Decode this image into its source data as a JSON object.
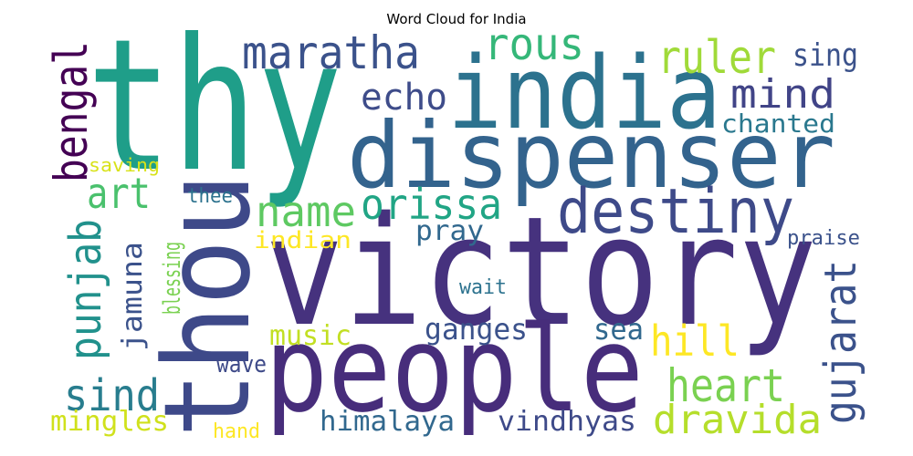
{
  "chart_data": {
    "type": "wordcloud",
    "title": "Word Cloud for India",
    "words": [
      {
        "text": "victory",
        "color": "#46327e"
      },
      {
        "text": "thy",
        "color": "#1f9e89"
      },
      {
        "text": "india",
        "color": "#2c728e"
      },
      {
        "text": "dispenser",
        "color": "#33638d"
      },
      {
        "text": "people",
        "color": "#472d7b"
      },
      {
        "text": "thou",
        "color": "#3e4989"
      },
      {
        "text": "maratha",
        "color": "#3b528b"
      },
      {
        "text": "rous",
        "color": "#35b779"
      },
      {
        "text": "ruler",
        "color": "#a0da39"
      },
      {
        "text": "sing",
        "color": "#3b528b"
      },
      {
        "text": "echo",
        "color": "#3e4c8a"
      },
      {
        "text": "mind",
        "color": "#414487"
      },
      {
        "text": "chanted",
        "color": "#2a788e"
      },
      {
        "text": "bengal",
        "color": "#440154"
      },
      {
        "text": "art",
        "color": "#4ac16d"
      },
      {
        "text": "saving",
        "color": "#d8e219"
      },
      {
        "text": "punjab",
        "color": "#21918c"
      },
      {
        "text": "jamuna",
        "color": "#3b528b"
      },
      {
        "text": "blessing",
        "color": "#7ad151"
      },
      {
        "text": "thee",
        "color": "#2c728e"
      },
      {
        "text": "name",
        "color": "#5ec962"
      },
      {
        "text": "orissa",
        "color": "#21a585"
      },
      {
        "text": "destiny",
        "color": "#3e4a89"
      },
      {
        "text": "indian",
        "color": "#fde725"
      },
      {
        "text": "pray",
        "color": "#31688e"
      },
      {
        "text": "praise",
        "color": "#3b528b"
      },
      {
        "text": "wait",
        "color": "#2c728e"
      },
      {
        "text": "gujarat",
        "color": "#3b528b"
      },
      {
        "text": "music",
        "color": "#c2df23"
      },
      {
        "text": "ganges",
        "color": "#3b528b"
      },
      {
        "text": "sea",
        "color": "#31688e"
      },
      {
        "text": "hill",
        "color": "#fde725"
      },
      {
        "text": "wave",
        "color": "#3e4a89"
      },
      {
        "text": "sind",
        "color": "#287d8e"
      },
      {
        "text": "heart",
        "color": "#7ad151"
      },
      {
        "text": "mingles",
        "color": "#d0e11c"
      },
      {
        "text": "hand",
        "color": "#fde725"
      },
      {
        "text": "himalaya",
        "color": "#31688e"
      },
      {
        "text": "vindhyas",
        "color": "#3e4a89"
      },
      {
        "text": "dravida",
        "color": "#b5de2b"
      }
    ]
  }
}
